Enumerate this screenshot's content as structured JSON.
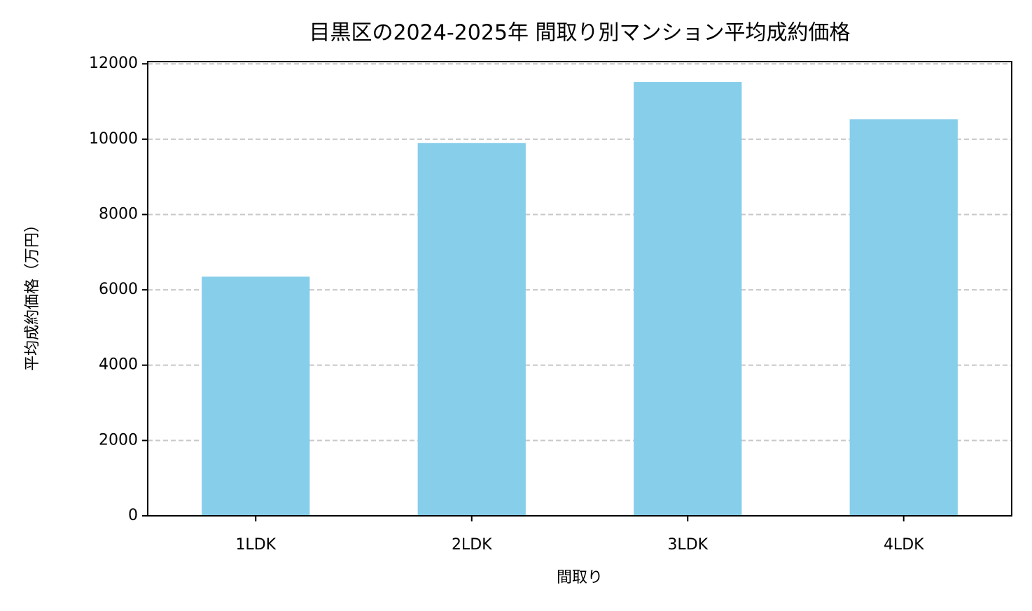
{
  "chart_data": {
    "type": "bar",
    "title": "目黒区の2024-2025年 間取り別マンション平均成約価格",
    "x_label": "間取り",
    "y_label": "平均成約価格（万円）",
    "categories": [
      "1LDK",
      "2LDK",
      "3LDK",
      "4LDK"
    ],
    "values": [
      6350,
      9900,
      11520,
      10530
    ],
    "color": "#87ceeb",
    "ylim": [
      0,
      12060
    ],
    "yticks": [
      0,
      2000,
      4000,
      6000,
      8000,
      10000,
      12000
    ],
    "grid": true
  }
}
